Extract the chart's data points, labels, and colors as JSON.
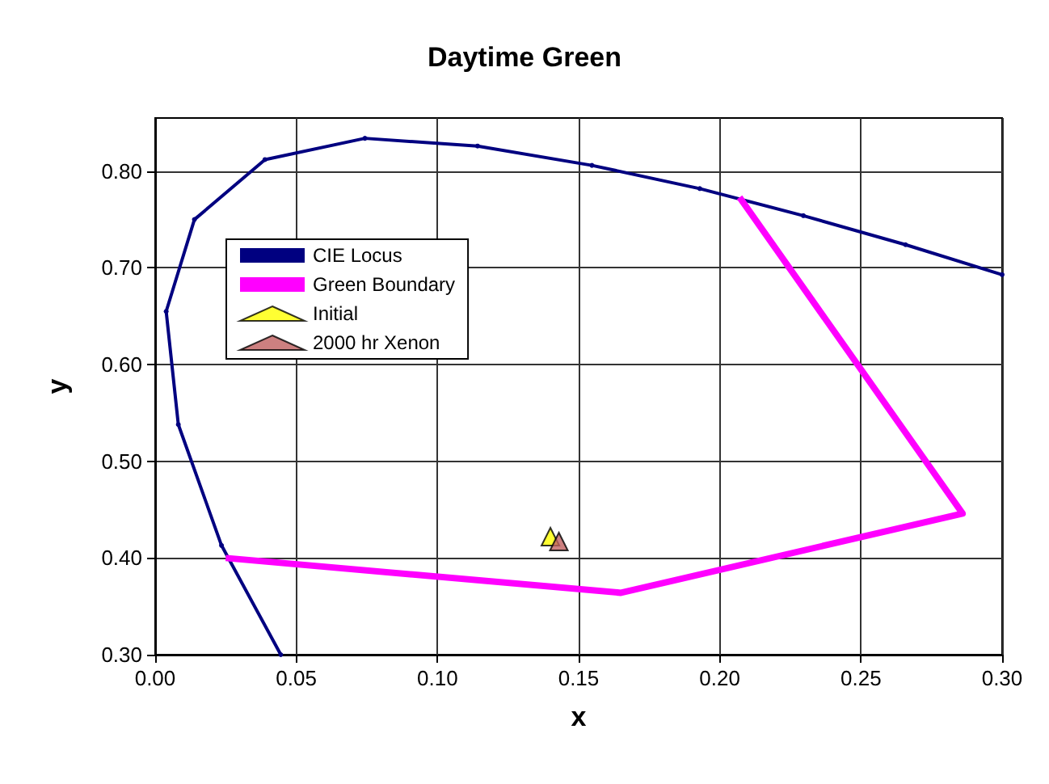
{
  "chart_data": {
    "type": "line",
    "title": "Daytime Green",
    "xlabel": "x",
    "ylabel": "y",
    "xlim": [
      0,
      0.3
    ],
    "ylim": [
      0.3,
      0.855
    ],
    "xticks": [
      {
        "value": 0,
        "label": "0.00"
      },
      {
        "value": 0.05,
        "label": "0.05"
      },
      {
        "value": 0.1,
        "label": "0.10"
      },
      {
        "value": 0.15,
        "label": "0.15"
      },
      {
        "value": 0.2,
        "label": "0.20"
      },
      {
        "value": 0.25,
        "label": "0.25"
      },
      {
        "value": 0.3,
        "label": "0.30"
      }
    ],
    "yticks": [
      {
        "value": 0.3,
        "label": "0.30"
      },
      {
        "value": 0.4,
        "label": "0.40"
      },
      {
        "value": 0.5,
        "label": "0.50"
      },
      {
        "value": 0.6,
        "label": "0.60"
      },
      {
        "value": 0.7,
        "label": "0.70"
      },
      {
        "value": 0.8,
        "label": "0.80"
      }
    ],
    "grid": true,
    "legend": "top left",
    "series": [
      {
        "name": "CIE Locus",
        "color": "#000080",
        "marker": "circle",
        "x": [
          0.0445,
          0.0235,
          0.0082,
          0.0039,
          0.0139,
          0.0389,
          0.0743,
          0.1142,
          0.1547,
          0.1929,
          0.2296,
          0.2658,
          0.3
        ],
        "values": [
          0.3,
          0.413,
          0.538,
          0.655,
          0.75,
          0.812,
          0.834,
          0.826,
          0.806,
          0.782,
          0.754,
          0.724,
          0.693
        ]
      },
      {
        "name": "Green Boundary",
        "color": "#ff00ff",
        "marker": "none",
        "x": [
          0.025,
          0.165,
          0.286,
          0.207
        ],
        "values": [
          0.4,
          0.364,
          0.446,
          0.773
        ]
      },
      {
        "name": "Initial",
        "type": "scatter",
        "color": "#ffff00",
        "marker": "triangle",
        "x": [
          0.14
        ],
        "values": [
          0.422
        ]
      },
      {
        "name": "2000 hr Xenon",
        "type": "scatter",
        "color": "#c06060",
        "marker": "triangle",
        "x": [
          0.143
        ],
        "values": [
          0.417
        ]
      }
    ]
  }
}
